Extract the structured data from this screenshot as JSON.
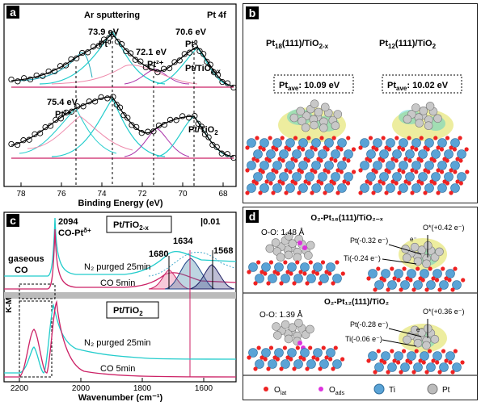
{
  "panel_a": {
    "letter": "a",
    "title": "Ar sputtering",
    "corner": "Pt 4f",
    "labels": [
      "73.9 eV",
      "Pt⁰",
      "72.1 eV",
      "Pt²⁺",
      "70.6 eV",
      "Pt⁰",
      "75.4 eV",
      "Pt²⁺"
    ],
    "sample_top": "Pt/TiO",
    "sample_top_sub": "2-x",
    "sample_bottom": "Pt/TiO",
    "sample_bottom_sub": "2",
    "xlabel": "Binding Energy (eV)",
    "xticks": [
      "78",
      "76",
      "74",
      "72",
      "70",
      "68"
    ]
  },
  "panel_b": {
    "letter": "b",
    "left_title": "Pt",
    "left_title_sub": "18",
    "left_title_rest": "(111)/TiO",
    "left_title_sub2": "2-x",
    "right_title": "Pt",
    "right_title_sub": "12",
    "right_title_rest": "(111)/TiO",
    "right_title_sub2": "2",
    "left_box": "Pt",
    "left_box_sub": "ave",
    "left_box_val": ": 10.09 eV",
    "right_box": "Pt",
    "right_box_sub": "ave",
    "right_box_val": ": 10.02 eV"
  },
  "panel_c": {
    "letter": "c",
    "peak_main": "2094",
    "peak_main_label": "CO-Pt",
    "peak_main_sup": "δ+",
    "sample_top": "Pt/TiO",
    "sample_top_sub": "2-x",
    "sample_bottom": "Pt/TiO",
    "sample_bottom_sub": "2",
    "scale": "|0.01",
    "gas_label1": "gaseous",
    "gas_label2": "CO",
    "peaks": [
      "1680",
      "1634",
      "1568"
    ],
    "trace_labels": [
      "N₂ purged 25min",
      "CO 5min",
      "N₂ purged 25min",
      "CO 5min"
    ],
    "ylabel": "K-M",
    "xlabel": "Wavenumber (cm⁻¹)",
    "xticks": [
      "2200",
      "2000",
      "1800",
      "1600"
    ]
  },
  "panel_d": {
    "letter": "d",
    "top_title": "O₂-Pt₁₈(111)/TiO₂₋ₓ",
    "bottom_title": "O₂-Pt₁₂(111)/TiO₂",
    "top_oo": "O-O: 1.48 Å",
    "bottom_oo": "O-O: 1.39 Å",
    "top_pt": "Pt(-0.32 e⁻)",
    "top_ti": "Ti(-0.24 e⁻)",
    "top_o": "O*(+0.42 e⁻)",
    "bottom_pt": "Pt(-0.28 e⁻)",
    "bottom_ti": "Ti(-0.06 e⁻)",
    "bottom_o": "O*(+0.36 e⁻)",
    "electron": "e⁻",
    "legend": [
      "O",
      "lat",
      "O",
      "ads",
      "Ti",
      "Pt"
    ]
  }
}
